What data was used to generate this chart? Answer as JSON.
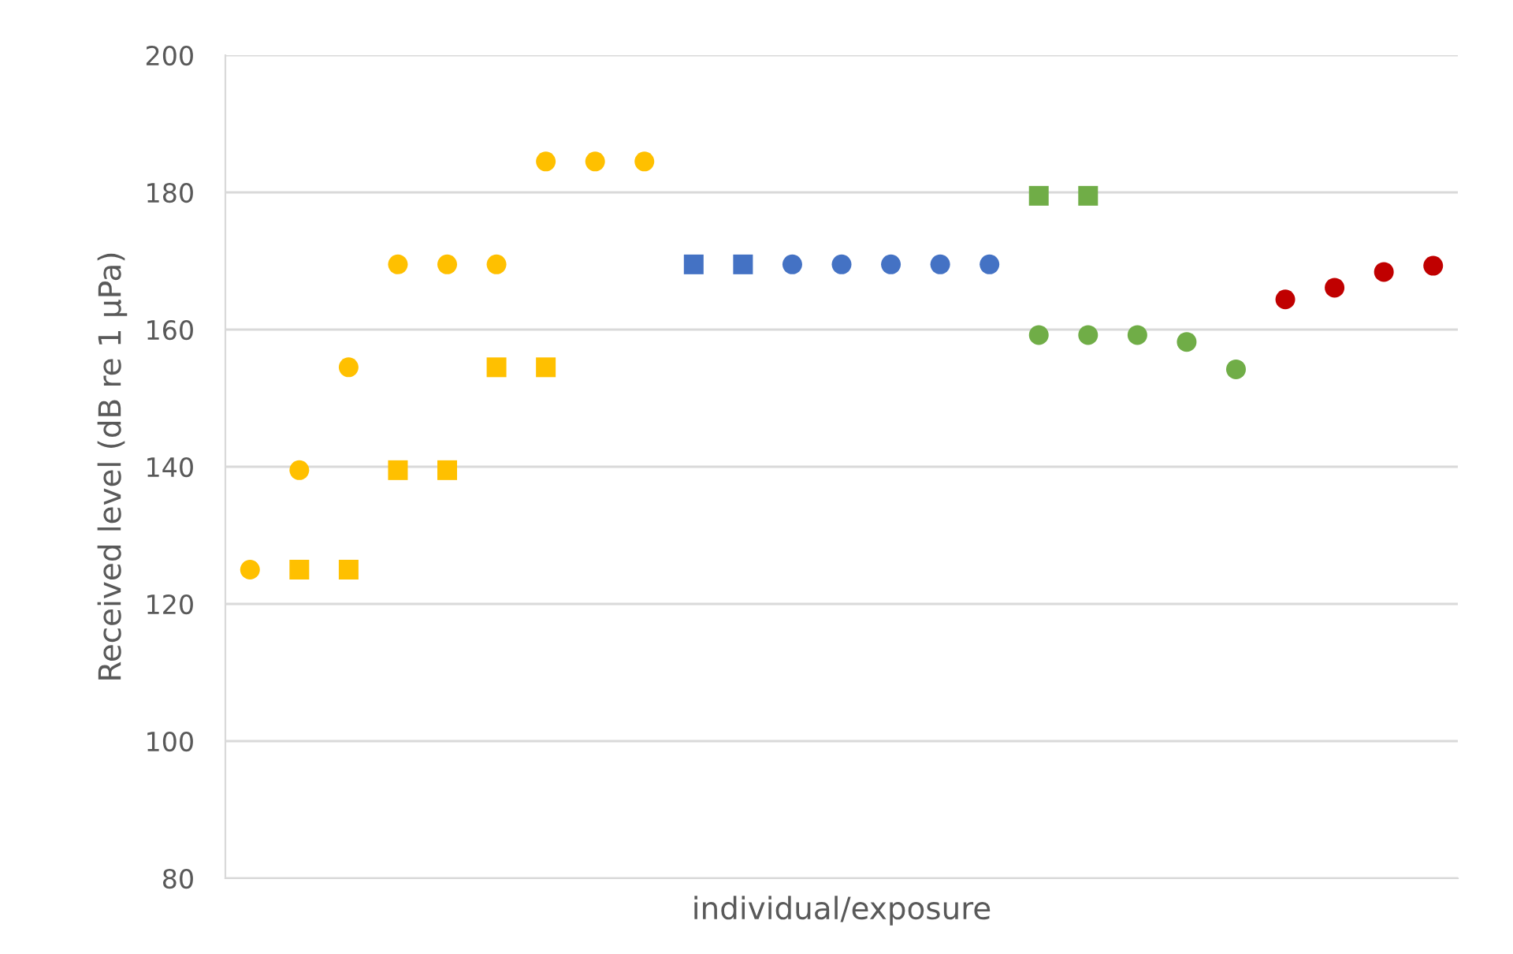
{
  "chart_data": {
    "type": "scatter",
    "xlabel": "individual/exposure",
    "ylabel": "Received level (dB re 1 µPa)",
    "categories": [
      null,
      null,
      null,
      null,
      null,
      null,
      null,
      null,
      null,
      null,
      null,
      null,
      null,
      null,
      null,
      null,
      null,
      null,
      null,
      null,
      null,
      null,
      null,
      null,
      null
    ],
    "series": [
      {
        "color": "#ffc000",
        "marker": "circle",
        "values": [
          125,
          139.5,
          154.5,
          169.5,
          169.5,
          169.5,
          184.5,
          184.5,
          184.5,
          null,
          null,
          null,
          null,
          null,
          null,
          null,
          null,
          null,
          null,
          null,
          null,
          null,
          null,
          null,
          null
        ]
      },
      {
        "color": "#ffc000",
        "marker": "square",
        "values": [
          null,
          125,
          125,
          139.5,
          139.5,
          154.5,
          154.5,
          null,
          null,
          null,
          null,
          null,
          null,
          null,
          null,
          null,
          null,
          null,
          null,
          null,
          null,
          null,
          null,
          null,
          null
        ]
      },
      {
        "color": "#4472c4",
        "marker": "square",
        "values": [
          null,
          null,
          null,
          null,
          null,
          null,
          null,
          null,
          null,
          169.5,
          169.5,
          null,
          null,
          null,
          null,
          null,
          null,
          null,
          null,
          null,
          null,
          null,
          null,
          null,
          null
        ]
      },
      {
        "color": "#4472c4",
        "marker": "circle",
        "values": [
          null,
          null,
          null,
          null,
          null,
          null,
          null,
          null,
          null,
          null,
          null,
          169.5,
          169.5,
          169.5,
          169.5,
          169.5,
          null,
          null,
          null,
          null,
          null,
          null,
          null,
          null,
          null
        ]
      },
      {
        "color": "#70ad47",
        "marker": "square",
        "values": [
          null,
          null,
          null,
          null,
          null,
          null,
          null,
          null,
          null,
          null,
          null,
          null,
          null,
          null,
          null,
          null,
          179.5,
          179.5,
          null,
          null,
          null,
          null,
          null,
          null,
          null
        ]
      },
      {
        "color": "#70ad47",
        "marker": "circle",
        "values": [
          null,
          null,
          null,
          null,
          null,
          null,
          null,
          null,
          null,
          null,
          null,
          null,
          null,
          null,
          null,
          null,
          159.2,
          159.2,
          159.2,
          158.2,
          154.2,
          null,
          null,
          null,
          null
        ]
      },
      {
        "color": "#c00000",
        "marker": "circle",
        "values": [
          null,
          null,
          null,
          null,
          null,
          null,
          null,
          null,
          null,
          null,
          null,
          null,
          null,
          null,
          null,
          null,
          null,
          null,
          null,
          null,
          null,
          164.4,
          166.1,
          168.4,
          169.3
        ]
      }
    ],
    "ylim": [
      80,
      200
    ],
    "yticks": [
      80,
      100,
      120,
      140,
      160,
      180,
      200
    ],
    "grid": "y",
    "tick_labels": "y"
  }
}
